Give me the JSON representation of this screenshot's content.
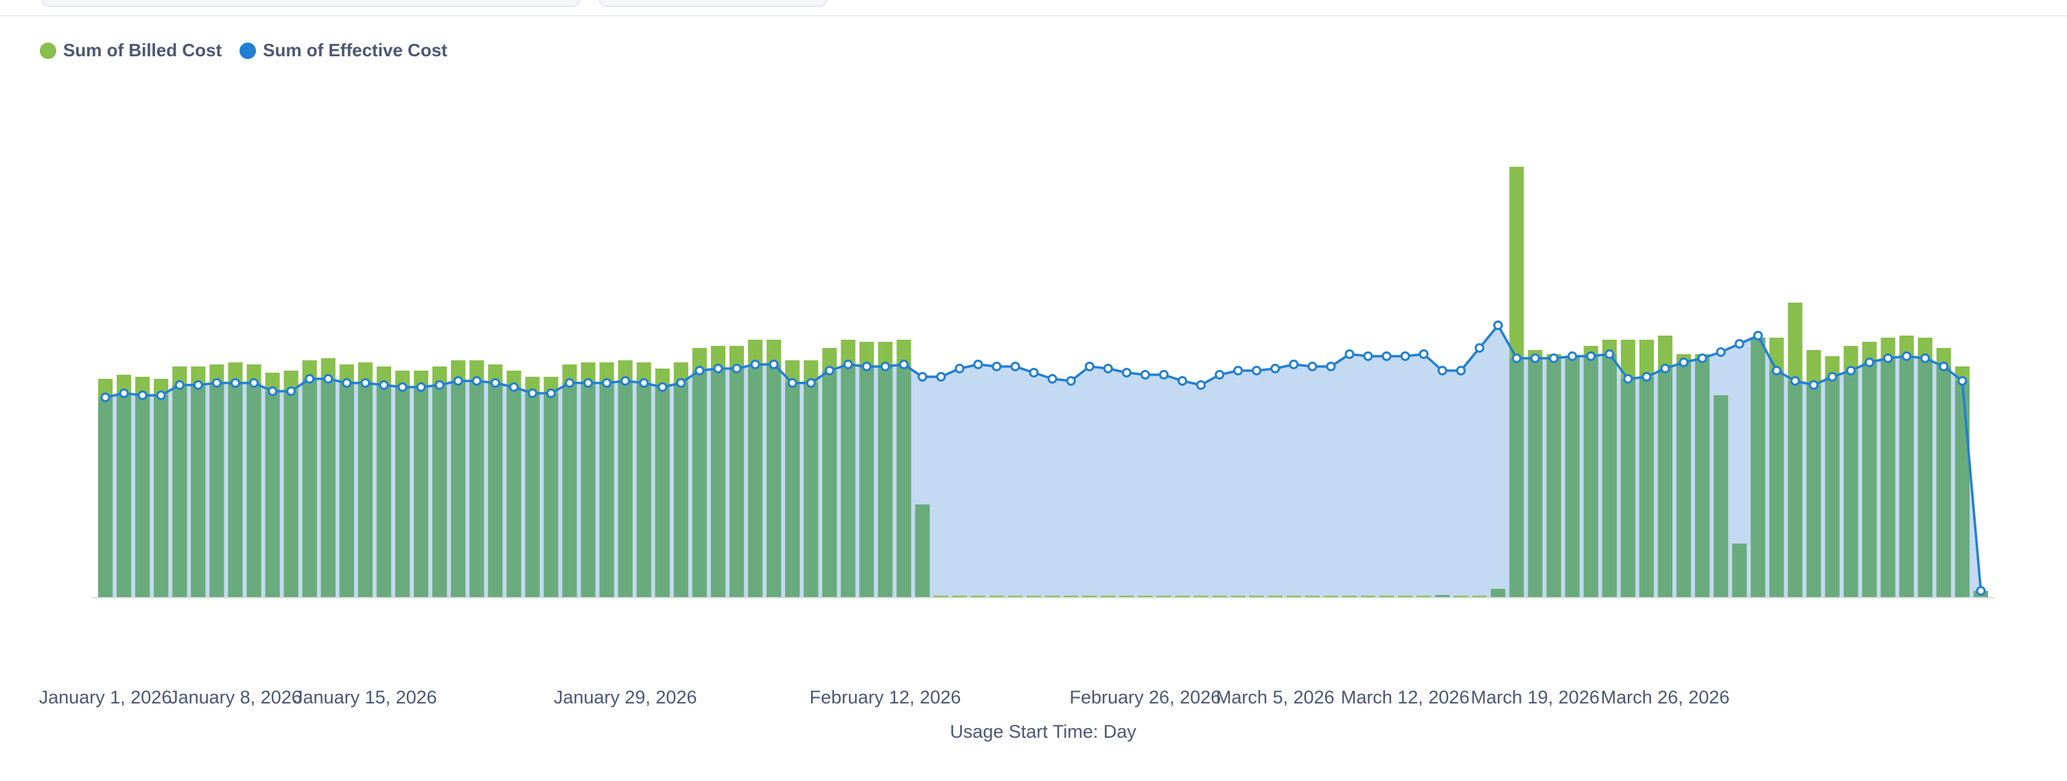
{
  "legend": {
    "billed_label": "Sum of Billed Cost",
    "effective_label": "Sum of Effective Cost"
  },
  "colors": {
    "billed": "#88bf4d",
    "effective": "#227fd2",
    "area": "#c3daf2",
    "overlap": "#6aab7d",
    "axis": "#dcdfe4"
  },
  "chart_data": {
    "type": "bar",
    "xlabel": "Usage Start Time: Day",
    "ylabel": "",
    "ylim": [
      0,
      210
    ],
    "grid": false,
    "legend_position": "top-left",
    "x_start": "2026-01-01",
    "x_end": "2026-03-31",
    "x_ticks": [
      {
        "date": "2026-01-01",
        "label": "January 1, 2026"
      },
      {
        "date": "2026-01-08",
        "label": "January 8, 2026"
      },
      {
        "date": "2026-01-15",
        "label": "January 15, 2026"
      },
      {
        "date": "2026-01-29",
        "label": "January 29, 2026"
      },
      {
        "date": "2026-02-12",
        "label": "February 12, 2026"
      },
      {
        "date": "2026-02-26",
        "label": "February 26, 2026"
      },
      {
        "date": "2026-03-05",
        "label": "March 5, 2026"
      },
      {
        "date": "2026-03-12",
        "label": "March 12, 2026"
      },
      {
        "date": "2026-03-19",
        "label": "March 19, 2026"
      },
      {
        "date": "2026-03-26",
        "label": "March 26, 2026"
      }
    ],
    "series": [
      {
        "name": "Sum of Billed Cost",
        "type": "bar",
        "values": [
          106,
          108,
          107,
          106,
          112,
          112,
          113,
          114,
          113,
          109,
          110,
          115,
          116,
          113,
          114,
          112,
          110,
          110,
          112,
          115,
          115,
          113,
          110,
          107,
          107,
          113,
          114,
          114,
          115,
          114,
          111,
          114,
          121,
          122,
          122,
          125,
          125,
          115,
          115,
          121,
          125,
          124,
          124,
          125,
          45,
          0,
          0,
          0,
          0,
          0,
          0,
          0,
          0,
          0,
          0,
          0,
          0,
          0,
          0,
          0,
          0,
          0,
          0,
          0,
          0,
          0,
          0,
          0,
          0,
          0,
          0,
          0,
          1,
          0,
          0,
          4,
          209,
          120,
          118,
          117,
          122,
          125,
          125,
          125,
          127,
          118,
          118,
          98,
          26,
          126,
          126,
          143,
          120,
          117,
          122,
          124,
          126,
          127,
          126,
          121,
          112,
          3
        ]
      },
      {
        "name": "Sum of Effective Cost",
        "type": "area-line",
        "values": [
          97,
          99,
          98,
          98,
          103,
          103,
          104,
          104,
          104,
          100,
          100,
          106,
          106,
          104,
          104,
          103,
          102,
          102,
          103,
          105,
          105,
          104,
          102,
          99,
          99,
          104,
          104,
          104,
          105,
          104,
          102,
          104,
          110,
          111,
          111,
          113,
          113,
          104,
          104,
          110,
          113,
          112,
          112,
          113,
          107,
          107,
          111,
          113,
          112,
          112,
          109,
          106,
          105,
          112,
          111,
          109,
          108,
          108,
          105,
          103,
          108,
          110,
          110,
          111,
          113,
          112,
          112,
          118,
          117,
          117,
          117,
          118,
          110,
          110,
          121,
          132,
          116,
          116,
          116,
          117,
          117,
          118,
          106,
          107,
          111,
          114,
          116,
          119,
          123,
          127,
          110,
          105,
          103,
          107,
          110,
          114,
          116,
          117,
          116,
          112,
          105,
          3
        ]
      }
    ]
  }
}
